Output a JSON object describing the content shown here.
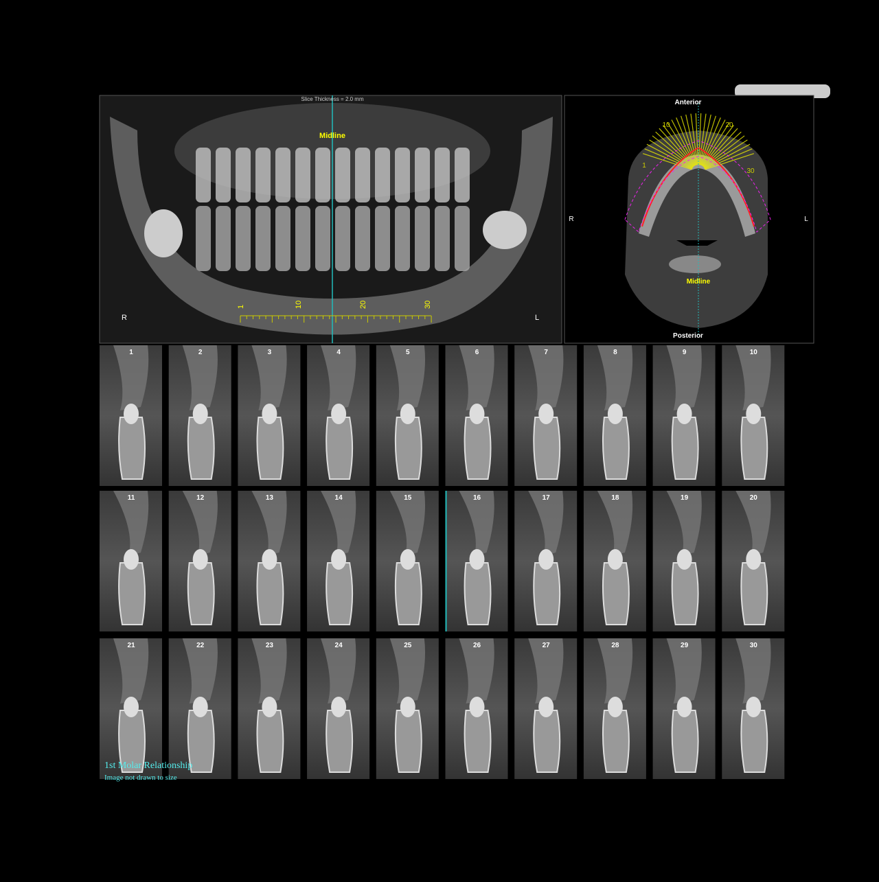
{
  "panoramic": {
    "slice_thickness": "Slice Thickness = 2.0 mm",
    "midline": "Midline",
    "right": "R",
    "left": "L",
    "ruler_labels": [
      "1",
      "10",
      "20",
      "30"
    ]
  },
  "axial": {
    "anterior": "Anterior",
    "posterior": "Posterior",
    "right": "R",
    "left": "L",
    "midline": "Midline",
    "arc_labels": [
      "1",
      "10",
      "20",
      "30"
    ]
  },
  "slices": [
    "1",
    "2",
    "3",
    "4",
    "5",
    "6",
    "7",
    "8",
    "9",
    "10",
    "11",
    "12",
    "13",
    "14",
    "15",
    "16",
    "17",
    "18",
    "19",
    "20",
    "21",
    "22",
    "23",
    "24",
    "25",
    "26",
    "27",
    "28",
    "29",
    "30"
  ],
  "footnote": {
    "title": "1st Molar Relationship",
    "note": "Image not drawn to size"
  }
}
